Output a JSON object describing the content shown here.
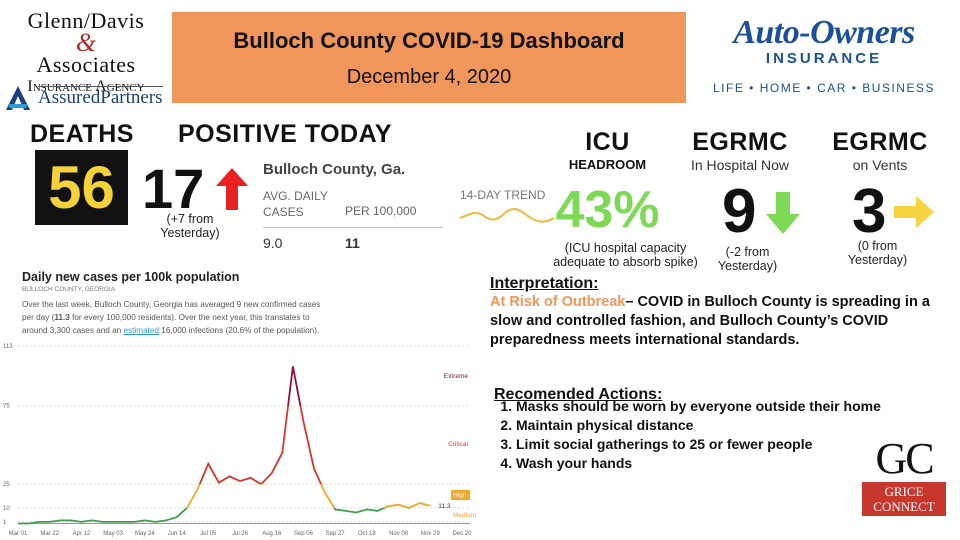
{
  "header": {
    "title": "Bulloch County COVID-19 Dashboard",
    "date": "December 4, 2020"
  },
  "logos": {
    "glenn_davis": [
      "Glenn/Davis",
      "&",
      "Associates",
      "Insurance Agency",
      "AssuredPartners"
    ],
    "auto_owners": [
      "Auto-Owners",
      "INSURANCE",
      "LIFE • HOME • CAR • BUSINESS"
    ],
    "grice": [
      "GC",
      "GRICE",
      "CONNECT"
    ]
  },
  "stats": {
    "deaths": {
      "label": "DEATHS",
      "value": 56
    },
    "positive": {
      "label": "POSITIVE TODAY",
      "value": 17,
      "note": "(+7 from Yesterday)"
    },
    "icu": {
      "label": "ICU",
      "sublabel": "HEADROOM",
      "value": "43%",
      "note": "(ICU hospital capacity adequate to absorb spike)"
    },
    "hospital": {
      "label": "EGRMC",
      "sublabel": "In Hospital Now",
      "value": 9,
      "note": "(-2 from Yesterday)"
    },
    "vents": {
      "label": "EGRMC",
      "sublabel": "on Vents",
      "value": 3,
      "note": "(0 from Yesterday)"
    }
  },
  "summary": {
    "place": "Bulloch County, Ga.",
    "avg_label": "AVG. DAILY CASES",
    "per_label": "PER 100,000",
    "avg": "9.0",
    "per": "11",
    "trend_label": "14-DAY TREND"
  },
  "daily_chart": {
    "type": "line",
    "title": "Daily new cases per 100k population",
    "subtitle": "BULLOCH COUNTY, GEORGIA",
    "description": [
      "Over the last week, Bulloch County, Georgia has averaged 9 new confirmed cases per day (",
      "11.3",
      " for every 100,000 residents). Over the next year, this translates to around 3,300 cases and an ",
      "estimated",
      " 16,000 infections (20.6% of the population)."
    ],
    "categories": [
      "Mar 01",
      null,
      null,
      "Mar 22",
      null,
      null,
      "Apr 12",
      null,
      null,
      "May 03",
      null,
      null,
      "May 24",
      null,
      null,
      "Jun 14",
      null,
      null,
      "Jul 05",
      null,
      null,
      "Jul 26",
      null,
      null,
      "Aug 16",
      null,
      null,
      "Sep 06",
      null,
      null,
      "Sep 27",
      null,
      null,
      "Oct 18",
      null,
      null,
      "Nov 08",
      null,
      null,
      "Nov 29",
      null,
      null,
      "Dec 20"
    ],
    "values": [
      0,
      0,
      1,
      1,
      2,
      2,
      1,
      2,
      1,
      1,
      1,
      1,
      2,
      1,
      2,
      4,
      10,
      22,
      38,
      26,
      30,
      27,
      29,
      25,
      32,
      45,
      100,
      65,
      35,
      20,
      9,
      8,
      7,
      9,
      8,
      11,
      12,
      10,
      13,
      11.3,
      null,
      null,
      null
    ],
    "end_label": "11.3",
    "ylim": [
      0,
      113
    ],
    "yticks": [
      1,
      10,
      25,
      75,
      113
    ],
    "zones": [
      "Extreme",
      "Critical",
      "High",
      "Medium"
    ]
  },
  "interpretation": {
    "heading": "Interpretation:",
    "risk": "At Risk of Outbreak",
    "text": "– COVID in Bulloch County is spreading in a slow and controlled fashion, and Bulloch County’s COVID preparedness meets international standards."
  },
  "actions": {
    "heading": "Recomended Actions:",
    "items": [
      "Masks should be worn by everyone outside their home",
      "Maintain physical distance",
      "Limit social gatherings to 25 or fewer people",
      "Wash your hands"
    ]
  }
}
